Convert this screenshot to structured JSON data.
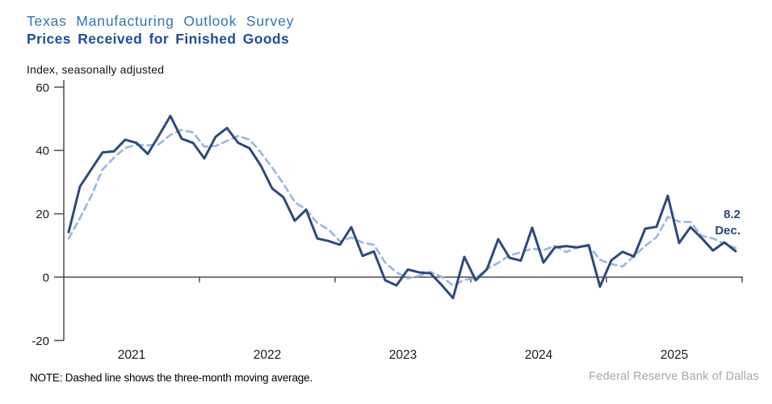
{
  "header": {
    "title": "Texas Manufacturing Outlook Survey",
    "subtitle": "Prices Received for Finished Goods",
    "units": "Index, seasonally adjusted"
  },
  "annotation": {
    "value": "8.2",
    "month": "Dec."
  },
  "footer": {
    "note": "NOTE: Dashed line shows the three-month moving average.",
    "source": "Federal Reserve Bank of Dallas"
  },
  "colors": {
    "title": "#2e75b6",
    "subtitle": "#1f4e9b",
    "line": "#2b4a7c",
    "moving_average": "#99b6e2",
    "axis": "#4d4d4d",
    "tick_text": "#1a1a1a",
    "source_text": "#a6a6a6"
  },
  "chart_data": {
    "type": "line",
    "title": "Texas Manufacturing Outlook Survey",
    "subtitle": "Prices Received for Finished Goods",
    "ylabel": "Index, seasonally adjusted",
    "x_start": "Jan 2021",
    "x_end": "Dec 2025",
    "frequency": "monthly",
    "xticks": [
      "2021",
      "2022",
      "2023",
      "2024",
      "2025"
    ],
    "yticks": [
      60,
      40,
      20,
      0,
      -20
    ],
    "ylim": [
      -20,
      60
    ],
    "grid": false,
    "legend": "none",
    "annotation": {
      "text": "8.2 Dec.",
      "x": "Dec 2025",
      "y": 8.2
    },
    "series": [
      {
        "name": "Prices received for finished goods (monthly)",
        "style": "solid",
        "values": [
          14.2,
          28.6,
          34,
          39.4,
          39.7,
          43.4,
          42.4,
          38.9,
          44.8,
          50.9,
          43.7,
          42.4,
          37.5,
          44.3,
          47.1,
          42.4,
          40.7,
          35.2,
          28,
          25.2,
          17.8,
          21.3,
          12.2,
          11.4,
          10.2,
          15.8,
          6.7,
          8.1,
          -1,
          -2.6,
          2.4,
          1.5,
          1.2,
          -2.5,
          -6.6,
          6.4,
          -1,
          2.5,
          12,
          6.1,
          5.2,
          15.6,
          4.6,
          9.4,
          9.8,
          9.4,
          10.1,
          -3,
          5.3,
          8,
          6.5,
          15.3,
          15.9,
          25.7,
          10.8,
          15.8,
          12.3,
          8.4,
          11,
          8.2
        ]
      },
      {
        "name": "Three-month moving average",
        "style": "dashed",
        "values": [
          12.2,
          18.6,
          25.6,
          34,
          37.7,
          40.8,
          41.8,
          41.6,
          42,
          44.9,
          46.5,
          45.7,
          41.2,
          41.4,
          43,
          44.6,
          43.4,
          39.4,
          34.6,
          29.5,
          23.7,
          21.4,
          17.1,
          15,
          11.3,
          12.5,
          10.9,
          10.2,
          4.6,
          1.5,
          -0.4,
          0.4,
          1.7,
          0.1,
          -2.6,
          -0.9,
          -0.4,
          2.6,
          4.5,
          6.9,
          7.8,
          9,
          8.5,
          9.9,
          7.9,
          9.5,
          9.8,
          5.5,
          4.1,
          3.4,
          6.6,
          9.9,
          12.6,
          19,
          17.5,
          17.4,
          13,
          12.2,
          10.6,
          9.2
        ]
      }
    ]
  }
}
